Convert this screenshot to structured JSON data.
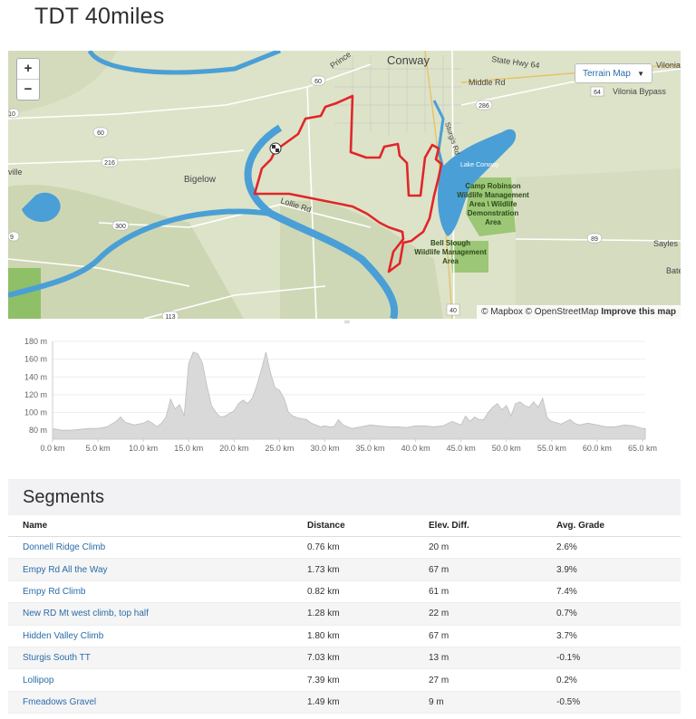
{
  "page": {
    "title": "TDT 40miles"
  },
  "map": {
    "zoom_in": "+",
    "zoom_out": "−",
    "map_type": "Terrain Map",
    "attribution_1": "© Mapbox © OpenStreetMap",
    "attribution_2": "Improve this map",
    "labels": {
      "conway": "Conway",
      "bigelow": "Bigelow",
      "lollie_rd": "Lollie Rd",
      "middle_rd": "Middle Rd",
      "state_hwy": "State Hwy 64",
      "vilonia": "Vilonia",
      "vilonia_bypass": "Vilonia Bypass",
      "camp_robinson_1": "Camp Robinson",
      "camp_robinson_2": "Wildlife Management",
      "camp_robinson_3": "Area \\ Wildlife",
      "camp_robinson_4": "Demonstration",
      "camp_robinson_5": "Area",
      "bell_slough_1": "Bell Slough",
      "bell_slough_2": "Wildlife Management",
      "bell_slough_3": "Area",
      "sturgis": "Sturgis Rd",
      "sayles": "Sayles",
      "bate": "Bate",
      "prince": "Prince",
      "ville": "ville",
      "lake_conway": "Lake Conway",
      "r60a": "60",
      "r60b": "60",
      "r216": "216",
      "r300": "300",
      "r286": "286",
      "r89": "89",
      "r40": "40",
      "r113": "113",
      "r64": "64",
      "r9": "9",
      "r10": "10"
    }
  },
  "chart_data": {
    "type": "area",
    "title": "",
    "xlabel": "",
    "ylabel": "",
    "x_ticks": [
      "0.0 km",
      "5.0 km",
      "10.0 km",
      "15.0 km",
      "20.0 km",
      "25.0 km",
      "30.0 km",
      "35.0 km",
      "40.0 km",
      "45.0 km",
      "50.0 km",
      "55.0 km",
      "60.0 km",
      "65.0 km"
    ],
    "y_ticks": [
      "80 m",
      "100 m",
      "120 m",
      "140 m",
      "160 m",
      "180 m"
    ],
    "xlim": [
      0,
      65.3
    ],
    "ylim": [
      70,
      180
    ],
    "x": [
      0,
      1,
      2,
      3,
      4,
      5,
      6,
      7,
      7.5,
      8,
      9,
      10,
      10.5,
      11,
      11.5,
      12,
      12.5,
      13,
      13.5,
      14,
      14.5,
      15,
      15.5,
      16,
      16.5,
      17,
      17.5,
      18,
      18.5,
      19,
      19.5,
      20,
      20.5,
      21,
      21.5,
      22,
      22.5,
      23,
      23.5,
      24,
      24.5,
      25,
      25.5,
      26,
      26.5,
      27,
      27.5,
      28,
      28.5,
      29,
      29.5,
      30,
      30.5,
      31,
      31.5,
      32,
      33,
      34,
      35,
      36,
      37,
      38,
      39,
      40,
      41,
      42,
      43,
      44,
      45,
      45.5,
      46,
      46.5,
      47,
      47.5,
      48,
      48.5,
      49,
      49.5,
      50,
      50.5,
      51,
      51.5,
      52,
      52.5,
      53,
      53.5,
      54,
      54.5,
      55,
      56,
      57,
      57.5,
      58,
      59,
      60,
      61,
      62,
      63,
      64,
      65,
      65.3
    ],
    "values": [
      82,
      80,
      80,
      81,
      82,
      82,
      84,
      90,
      95,
      89,
      86,
      88,
      91,
      88,
      84,
      88,
      95,
      115,
      104,
      109,
      96,
      155,
      168,
      166,
      156,
      130,
      108,
      100,
      95,
      96,
      99,
      102,
      110,
      114,
      110,
      116,
      130,
      148,
      168,
      145,
      128,
      125,
      116,
      100,
      96,
      94,
      93,
      92,
      88,
      86,
      84,
      85,
      84,
      84,
      92,
      86,
      82,
      84,
      86,
      85,
      84,
      84,
      83,
      85,
      85,
      84,
      85,
      90,
      86,
      96,
      90,
      95,
      92,
      92,
      100,
      106,
      110,
      103,
      108,
      96,
      110,
      112,
      108,
      106,
      112,
      106,
      116,
      94,
      90,
      87,
      92,
      88,
      86,
      88,
      86,
      84,
      84,
      86,
      85,
      82,
      82
    ],
    "fill": "#d9d9d9",
    "stroke": "#bdbdbd"
  },
  "segments": {
    "heading": "Segments",
    "columns": [
      "Name",
      "Distance",
      "Elev. Diff.",
      "Avg. Grade"
    ],
    "rows": [
      [
        "Donnell Ridge Climb",
        "0.76 km",
        "20 m",
        "2.6%"
      ],
      [
        "Empy Rd All the Way",
        "1.73 km",
        "67 m",
        "3.9%"
      ],
      [
        "Empy Rd Climb",
        "0.82 km",
        "61 m",
        "7.4%"
      ],
      [
        "New RD Mt west climb, top half",
        "1.28 km",
        "22 m",
        "0.7%"
      ],
      [
        "Hidden Valley Climb",
        "1.80 km",
        "67 m",
        "3.7%"
      ],
      [
        "Sturgis South TT",
        "7.03 km",
        "13 m",
        "-0.1%"
      ],
      [
        "Lollipop",
        "7.39 km",
        "27 m",
        "0.2%"
      ],
      [
        "Fmeadows Gravel",
        "1.49 km",
        "9 m",
        "-0.5%"
      ]
    ]
  },
  "colors": {
    "route": "#e0262a",
    "river": "#4a9fd6",
    "link": "#2a6ca8",
    "land": "#d9dfc4",
    "park": "#8fbf67"
  }
}
